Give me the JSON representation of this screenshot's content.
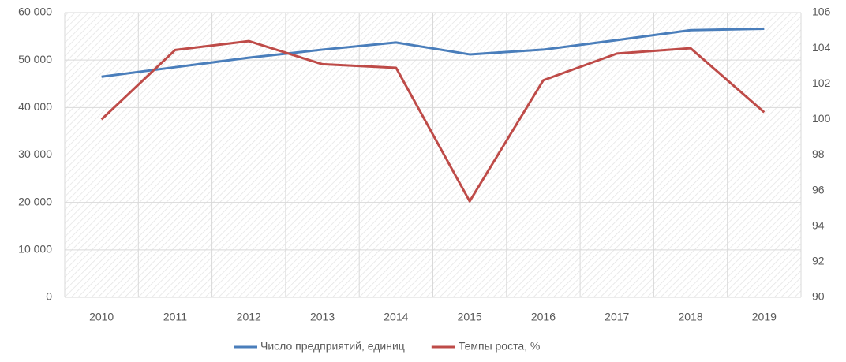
{
  "chart_data": {
    "type": "line",
    "categories": [
      "2010",
      "2011",
      "2012",
      "2013",
      "2014",
      "2015",
      "2016",
      "2017",
      "2018",
      "2019"
    ],
    "series": [
      {
        "name": "Число предприятий, единиц",
        "color": "#4a7ebb",
        "values": [
          46500,
          48500,
          50500,
          52200,
          53700,
          51200,
          52200,
          54200,
          56300,
          56600
        ]
      },
      {
        "name": "Темпы роста, %",
        "color": "#be4b48",
        "axis": "y2",
        "values": [
          100.0,
          103.9,
          104.4,
          103.1,
          102.9,
          95.4,
          102.2,
          103.7,
          104.0,
          100.4
        ]
      }
    ],
    "ylim": [
      0,
      60000
    ],
    "yticks": [
      0,
      {
        "value": 10000,
        "label": "10 000"
      },
      {
        "value": 20000,
        "label": "20 000"
      },
      {
        "value": 30000,
        "label": "30 000"
      },
      {
        "value": 40000,
        "label": "40 000"
      },
      {
        "value": 50000,
        "label": "50 000"
      },
      {
        "value": 60000,
        "label": "60 000"
      }
    ],
    "y2lim": [
      90,
      106
    ],
    "y2ticks": [
      90,
      92,
      94,
      96,
      98,
      100,
      102,
      104,
      106
    ],
    "grid": true,
    "legend": "bottom"
  }
}
